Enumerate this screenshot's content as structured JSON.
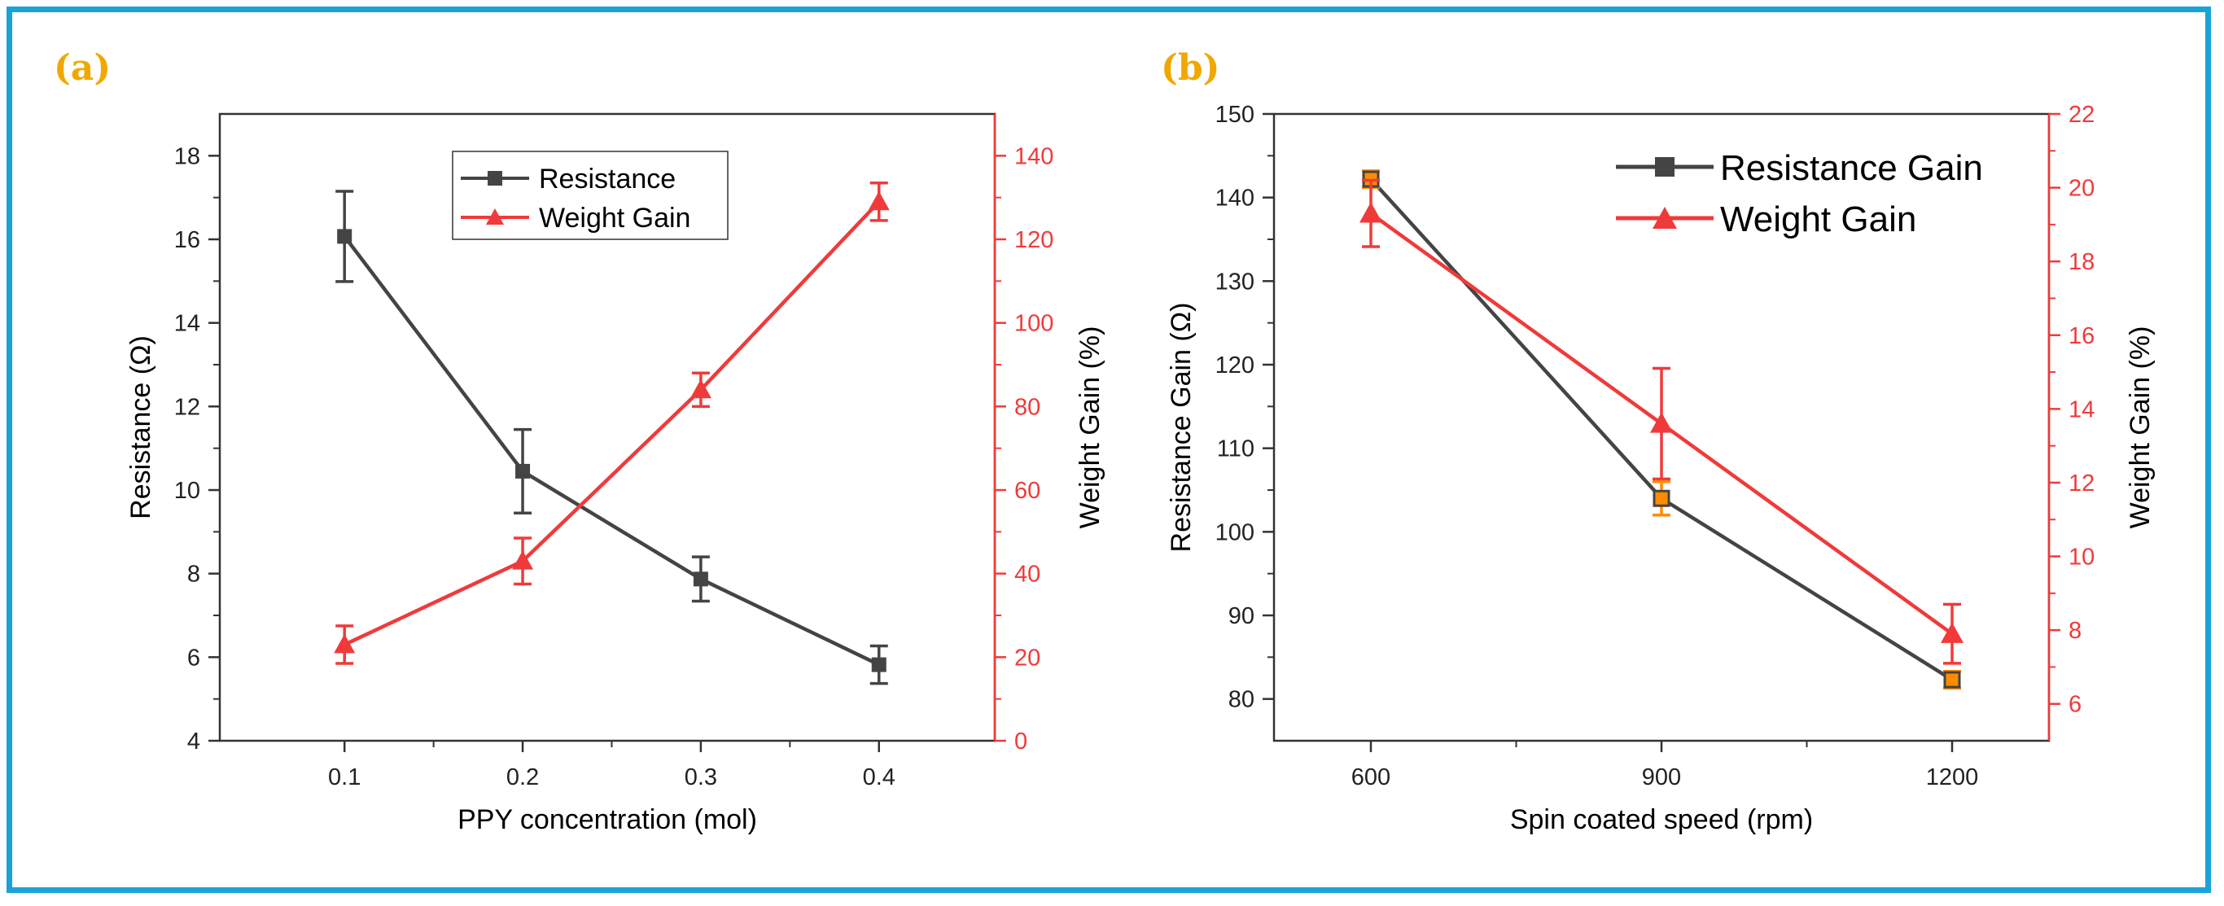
{
  "colors": {
    "frame": "#1aa3d9",
    "panel_label": "#f0a800",
    "resistance": "#444444",
    "weight": "#f03a3a",
    "marker_b_orange": "#ff8c00"
  },
  "chart_data": [
    {
      "type": "line",
      "panel_label": "(a)",
      "x": [
        0.1,
        0.2,
        0.3,
        0.4
      ],
      "xlabel": "PPY concentration (mol)",
      "x_tick_labels": [
        "0.1",
        "0.2",
        "0.3",
        "0.4"
      ],
      "x_ticks": [
        0.1,
        0.2,
        0.3,
        0.4
      ],
      "xlim": [
        0.03,
        0.465
      ],
      "ylabel_left": "Resistance (Ω)",
      "ylim_left": [
        4,
        19
      ],
      "y_ticks_left": [
        4,
        6,
        8,
        10,
        12,
        14,
        16,
        18
      ],
      "y_tick_labels_left": [
        "4",
        "6",
        "8",
        "10",
        "12",
        "14",
        "16",
        "18"
      ],
      "ylabel_right": "Weight Gain (%)",
      "ylim_right": [
        0,
        150
      ],
      "y_ticks_right": [
        0,
        20,
        40,
        60,
        80,
        100,
        120,
        140
      ],
      "y_tick_labels_right": [
        "0",
        "20",
        "40",
        "60",
        "80",
        "100",
        "120",
        "140"
      ],
      "legend_position": "top-center",
      "series": [
        {
          "name": "Resistance",
          "axis": "left",
          "marker": "square",
          "values": [
            16.07,
            10.45,
            7.87,
            5.82
          ],
          "errors": [
            1.08,
            1.0,
            0.53,
            0.45
          ]
        },
        {
          "name": "Weight Gain",
          "axis": "right",
          "marker": "triangle",
          "values": [
            23,
            43,
            84,
            129
          ],
          "errors": [
            4.5,
            5.5,
            4.0,
            4.5
          ]
        }
      ]
    },
    {
      "type": "line",
      "panel_label": "(b)",
      "x": [
        600,
        900,
        1200
      ],
      "xlabel": "Spin coated speed (rpm)",
      "x_tick_labels": [
        "600",
        "900",
        "1200"
      ],
      "x_ticks": [
        600,
        900,
        1200
      ],
      "xlim": [
        500,
        1300
      ],
      "ylabel_left": "Resistance Gain (Ω)",
      "ylim_left": [
        75,
        150
      ],
      "y_ticks_left": [
        80,
        90,
        100,
        110,
        120,
        130,
        140,
        150
      ],
      "y_tick_labels_left": [
        "80",
        "90",
        "100",
        "110",
        "120",
        "130",
        "140",
        "150"
      ],
      "ylabel_right": "Weight Gain (%)",
      "ylim_right": [
        5,
        22
      ],
      "y_ticks_right": [
        6,
        8,
        10,
        12,
        14,
        16,
        18,
        20,
        22
      ],
      "y_tick_labels_right": [
        "6",
        "8",
        "10",
        "12",
        "14",
        "16",
        "18",
        "20",
        "22"
      ],
      "legend_position": "top-right",
      "series": [
        {
          "name": "Resistance Gain",
          "axis": "left",
          "marker": "square",
          "values": [
            142.2,
            104.0,
            82.3
          ],
          "errors": [
            1.0,
            2.0,
            1.0
          ]
        },
        {
          "name": "Weight Gain",
          "axis": "right",
          "marker": "triangle",
          "values": [
            19.3,
            13.6,
            7.9
          ],
          "errors": [
            0.9,
            1.5,
            0.8
          ]
        }
      ]
    }
  ]
}
